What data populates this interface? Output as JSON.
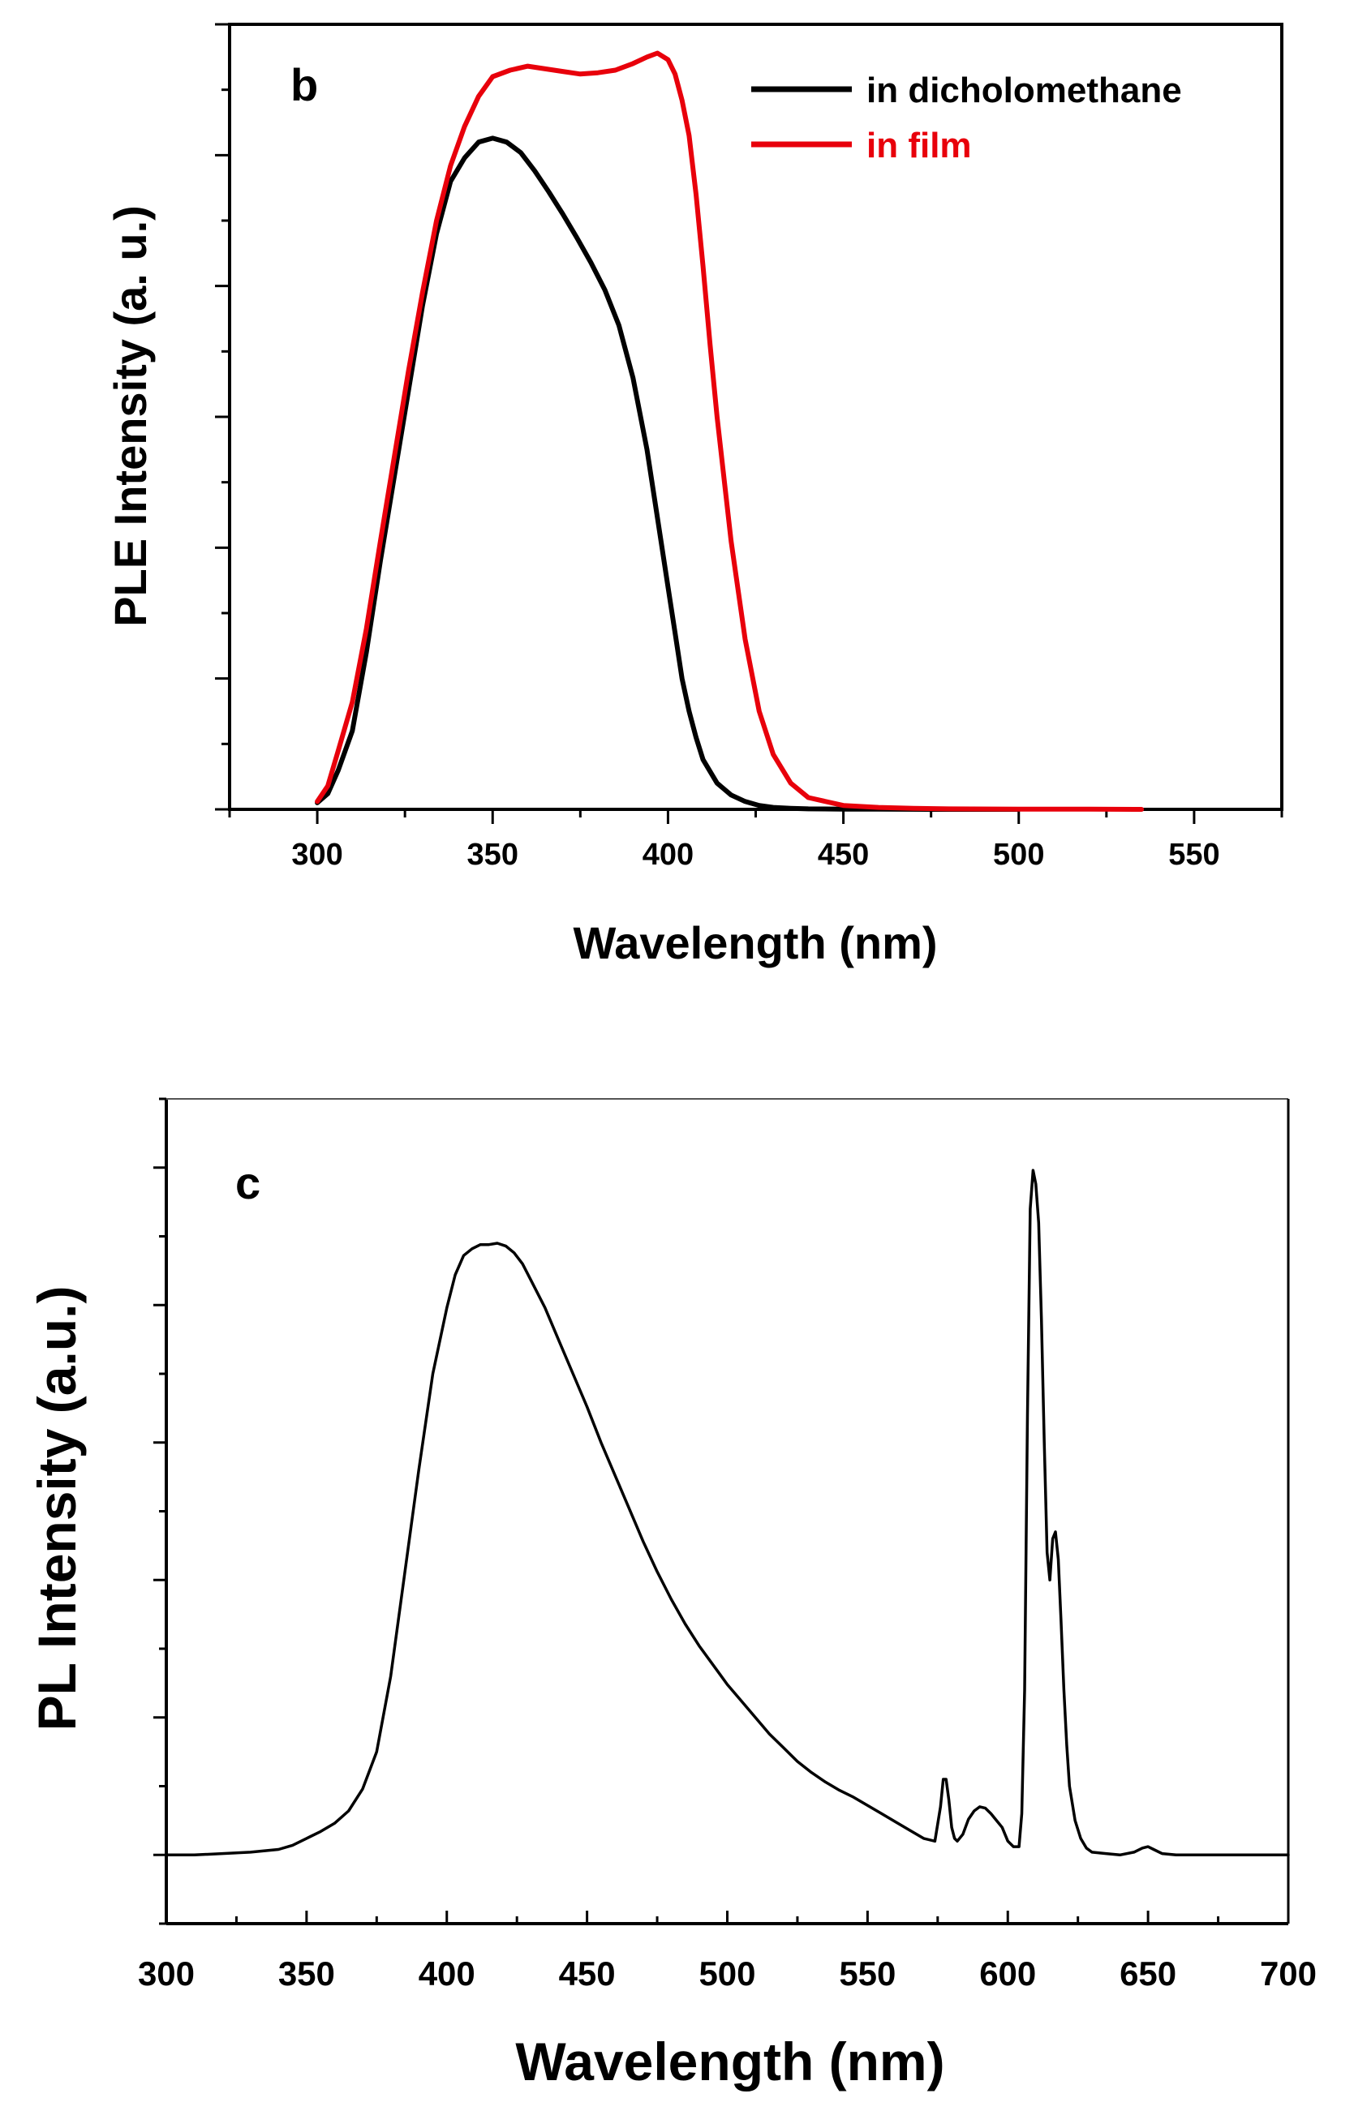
{
  "chart_data": [
    {
      "panel": "b",
      "type": "line",
      "title": "",
      "xlabel": "Wavelength (nm)",
      "ylabel": "PLE Intensity (a. u.)",
      "xlim": [
        275,
        575
      ],
      "ylim": [
        0,
        6
      ],
      "xticks": [
        300,
        350,
        400,
        450,
        500,
        550
      ],
      "ytick_labels_visible": false,
      "legend_placement": "top-right",
      "series": [
        {
          "name": "in dicholomethane",
          "color": "#000000",
          "x": [
            300,
            303,
            306,
            310,
            314,
            318,
            322,
            326,
            330,
            334,
            338,
            342,
            346,
            350,
            354,
            358,
            362,
            366,
            370,
            374,
            378,
            382,
            386,
            390,
            394,
            398,
            400,
            402,
            404,
            406,
            408,
            410,
            414,
            418,
            422,
            426,
            430,
            435,
            440,
            450,
            460,
            480,
            500
          ],
          "y": [
            0.05,
            0.12,
            0.3,
            0.6,
            1.2,
            1.9,
            2.55,
            3.2,
            3.85,
            4.4,
            4.8,
            4.98,
            5.1,
            5.13,
            5.1,
            5.02,
            4.88,
            4.72,
            4.55,
            4.37,
            4.18,
            3.97,
            3.7,
            3.3,
            2.75,
            2.05,
            1.7,
            1.35,
            1.0,
            0.75,
            0.55,
            0.38,
            0.2,
            0.11,
            0.06,
            0.03,
            0.015,
            0.008,
            0.004,
            0.002,
            0.001,
            0.0,
            0.0
          ]
        },
        {
          "name": "in film",
          "color": "#e8000b",
          "x": [
            300,
            303,
            306,
            310,
            314,
            318,
            322,
            326,
            330,
            334,
            338,
            342,
            346,
            350,
            355,
            360,
            365,
            370,
            375,
            380,
            385,
            390,
            394,
            397,
            400,
            402,
            404,
            406,
            408,
            410,
            412,
            414,
            418,
            422,
            426,
            430,
            435,
            440,
            450,
            460,
            470,
            480,
            500,
            520,
            535
          ],
          "y": [
            0.06,
            0.18,
            0.45,
            0.82,
            1.38,
            2.05,
            2.7,
            3.35,
            3.95,
            4.5,
            4.92,
            5.22,
            5.45,
            5.6,
            5.65,
            5.68,
            5.66,
            5.64,
            5.62,
            5.63,
            5.65,
            5.7,
            5.75,
            5.78,
            5.73,
            5.62,
            5.42,
            5.15,
            4.7,
            4.15,
            3.55,
            3.0,
            2.05,
            1.3,
            0.75,
            0.42,
            0.2,
            0.09,
            0.03,
            0.015,
            0.008,
            0.004,
            0.002,
            0.001,
            0.0
          ]
        }
      ],
      "panel_label": "b",
      "legend": {
        "entries": [
          "in dicholomethane",
          "in film"
        ]
      }
    },
    {
      "panel": "c",
      "type": "line",
      "title": "",
      "xlabel": "Wavelength (nm)",
      "ylabel": "PL Intensity (a.u.)",
      "xlim": [
        300,
        700
      ],
      "ylim": [
        -0.5,
        5.5
      ],
      "xticks": [
        300,
        350,
        400,
        450,
        500,
        550,
        600,
        650,
        700
      ],
      "ytick_labels_visible": false,
      "series": [
        {
          "name": "PL",
          "color": "#000000",
          "x": [
            300,
            310,
            320,
            330,
            340,
            345,
            350,
            355,
            360,
            365,
            370,
            375,
            380,
            385,
            390,
            395,
            400,
            403,
            406,
            409,
            412,
            415,
            418,
            421,
            424,
            427,
            430,
            435,
            440,
            445,
            450,
            455,
            460,
            465,
            470,
            475,
            480,
            485,
            490,
            495,
            500,
            505,
            510,
            515,
            520,
            525,
            530,
            535,
            540,
            545,
            550,
            555,
            560,
            565,
            570,
            574,
            576,
            577,
            578,
            579,
            580,
            581,
            582,
            584,
            586,
            588,
            590,
            592,
            594,
            596,
            598,
            600,
            602,
            604,
            605,
            606,
            607,
            608,
            609,
            610,
            611,
            612,
            613,
            614,
            615,
            616,
            617,
            618,
            619,
            620,
            621,
            622,
            624,
            626,
            628,
            630,
            635,
            640,
            645,
            648,
            650,
            652,
            655,
            660,
            670,
            680,
            690,
            700
          ],
          "y": [
            0.0,
            0.0,
            0.01,
            0.02,
            0.04,
            0.07,
            0.12,
            0.17,
            0.23,
            0.32,
            0.48,
            0.75,
            1.3,
            2.05,
            2.8,
            3.5,
            3.98,
            4.22,
            4.36,
            4.41,
            4.44,
            4.44,
            4.45,
            4.43,
            4.38,
            4.3,
            4.18,
            3.98,
            3.74,
            3.5,
            3.26,
            3.0,
            2.76,
            2.52,
            2.28,
            2.06,
            1.86,
            1.68,
            1.52,
            1.38,
            1.24,
            1.12,
            1.0,
            0.88,
            0.78,
            0.68,
            0.6,
            0.53,
            0.47,
            0.42,
            0.36,
            0.3,
            0.24,
            0.18,
            0.12,
            0.1,
            0.35,
            0.55,
            0.55,
            0.4,
            0.2,
            0.12,
            0.1,
            0.15,
            0.26,
            0.32,
            0.35,
            0.34,
            0.3,
            0.25,
            0.2,
            0.1,
            0.06,
            0.06,
            0.3,
            1.2,
            3.2,
            4.7,
            4.98,
            4.88,
            4.6,
            3.9,
            3.0,
            2.2,
            2.0,
            2.3,
            2.35,
            2.15,
            1.7,
            1.2,
            0.8,
            0.5,
            0.25,
            0.12,
            0.05,
            0.02,
            0.01,
            0.0,
            0.02,
            0.05,
            0.06,
            0.04,
            0.01,
            0.0,
            0.0,
            0.0,
            0.0,
            0.0
          ]
        }
      ],
      "panel_label": "c"
    }
  ]
}
